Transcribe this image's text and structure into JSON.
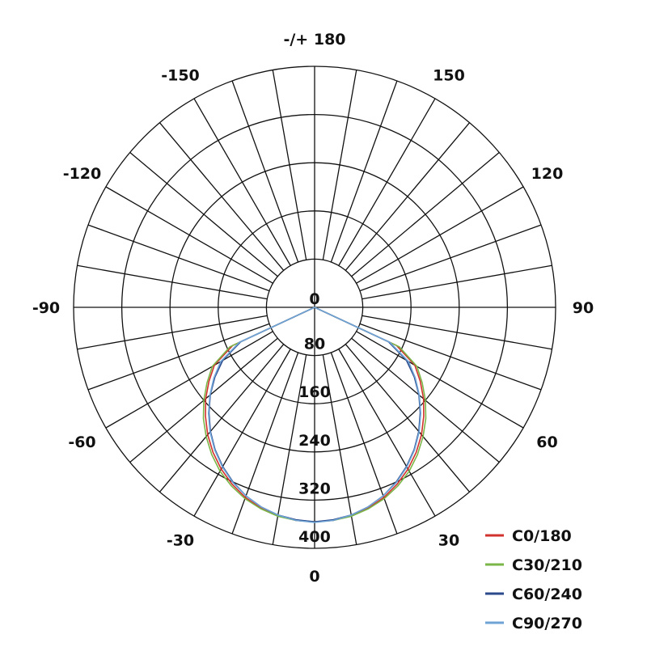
{
  "chart_data": {
    "type": "polar",
    "title": "",
    "angle_labels": [
      {
        "angle": 180,
        "text": "-/+ 180"
      },
      {
        "angle": 150,
        "text": "150"
      },
      {
        "angle": -150,
        "text": "-150"
      },
      {
        "angle": 120,
        "text": "120"
      },
      {
        "angle": -120,
        "text": "-120"
      },
      {
        "angle": 90,
        "text": "90"
      },
      {
        "angle": -90,
        "text": "-90"
      },
      {
        "angle": 60,
        "text": "60"
      },
      {
        "angle": -60,
        "text": "-60"
      },
      {
        "angle": 30,
        "text": "30"
      },
      {
        "angle": -30,
        "text": "-30"
      },
      {
        "angle": 0,
        "text": "0"
      }
    ],
    "radial_ticks": [
      0,
      80,
      160,
      240,
      320,
      400
    ],
    "radial_range": [
      0,
      400
    ],
    "angle_grid_step": 10,
    "legend_position": "bottom-right",
    "gamma": [
      0,
      5,
      10,
      15,
      20,
      25,
      30,
      35,
      40,
      45,
      50,
      55,
      60,
      65,
      70,
      75,
      80,
      85,
      90
    ],
    "series": [
      {
        "name": "C0/180",
        "color": "#d2322d",
        "values": [
          356,
          355,
          351,
          345,
          336,
          324,
          310,
          294,
          276,
          256,
          236,
          214,
          192,
          150,
          0,
          0,
          0,
          0,
          0
        ]
      },
      {
        "name": "C30/210",
        "color": "#7ab648",
        "values": [
          356,
          355,
          352,
          346,
          338,
          327,
          314,
          298,
          280,
          261,
          240,
          218,
          196,
          155,
          0,
          0,
          0,
          0,
          0
        ]
      },
      {
        "name": "C60/240",
        "color": "#2b4a8c",
        "values": [
          356,
          354,
          350,
          343,
          333,
          320,
          305,
          288,
          269,
          248,
          226,
          202,
          176,
          135,
          0,
          0,
          0,
          0,
          0
        ]
      },
      {
        "name": "C90/270",
        "color": "#6fa3d6",
        "values": [
          357,
          355,
          350,
          343,
          333,
          321,
          306,
          289,
          270,
          249,
          227,
          204,
          180,
          138,
          0,
          0,
          0,
          0,
          0
        ]
      }
    ]
  }
}
